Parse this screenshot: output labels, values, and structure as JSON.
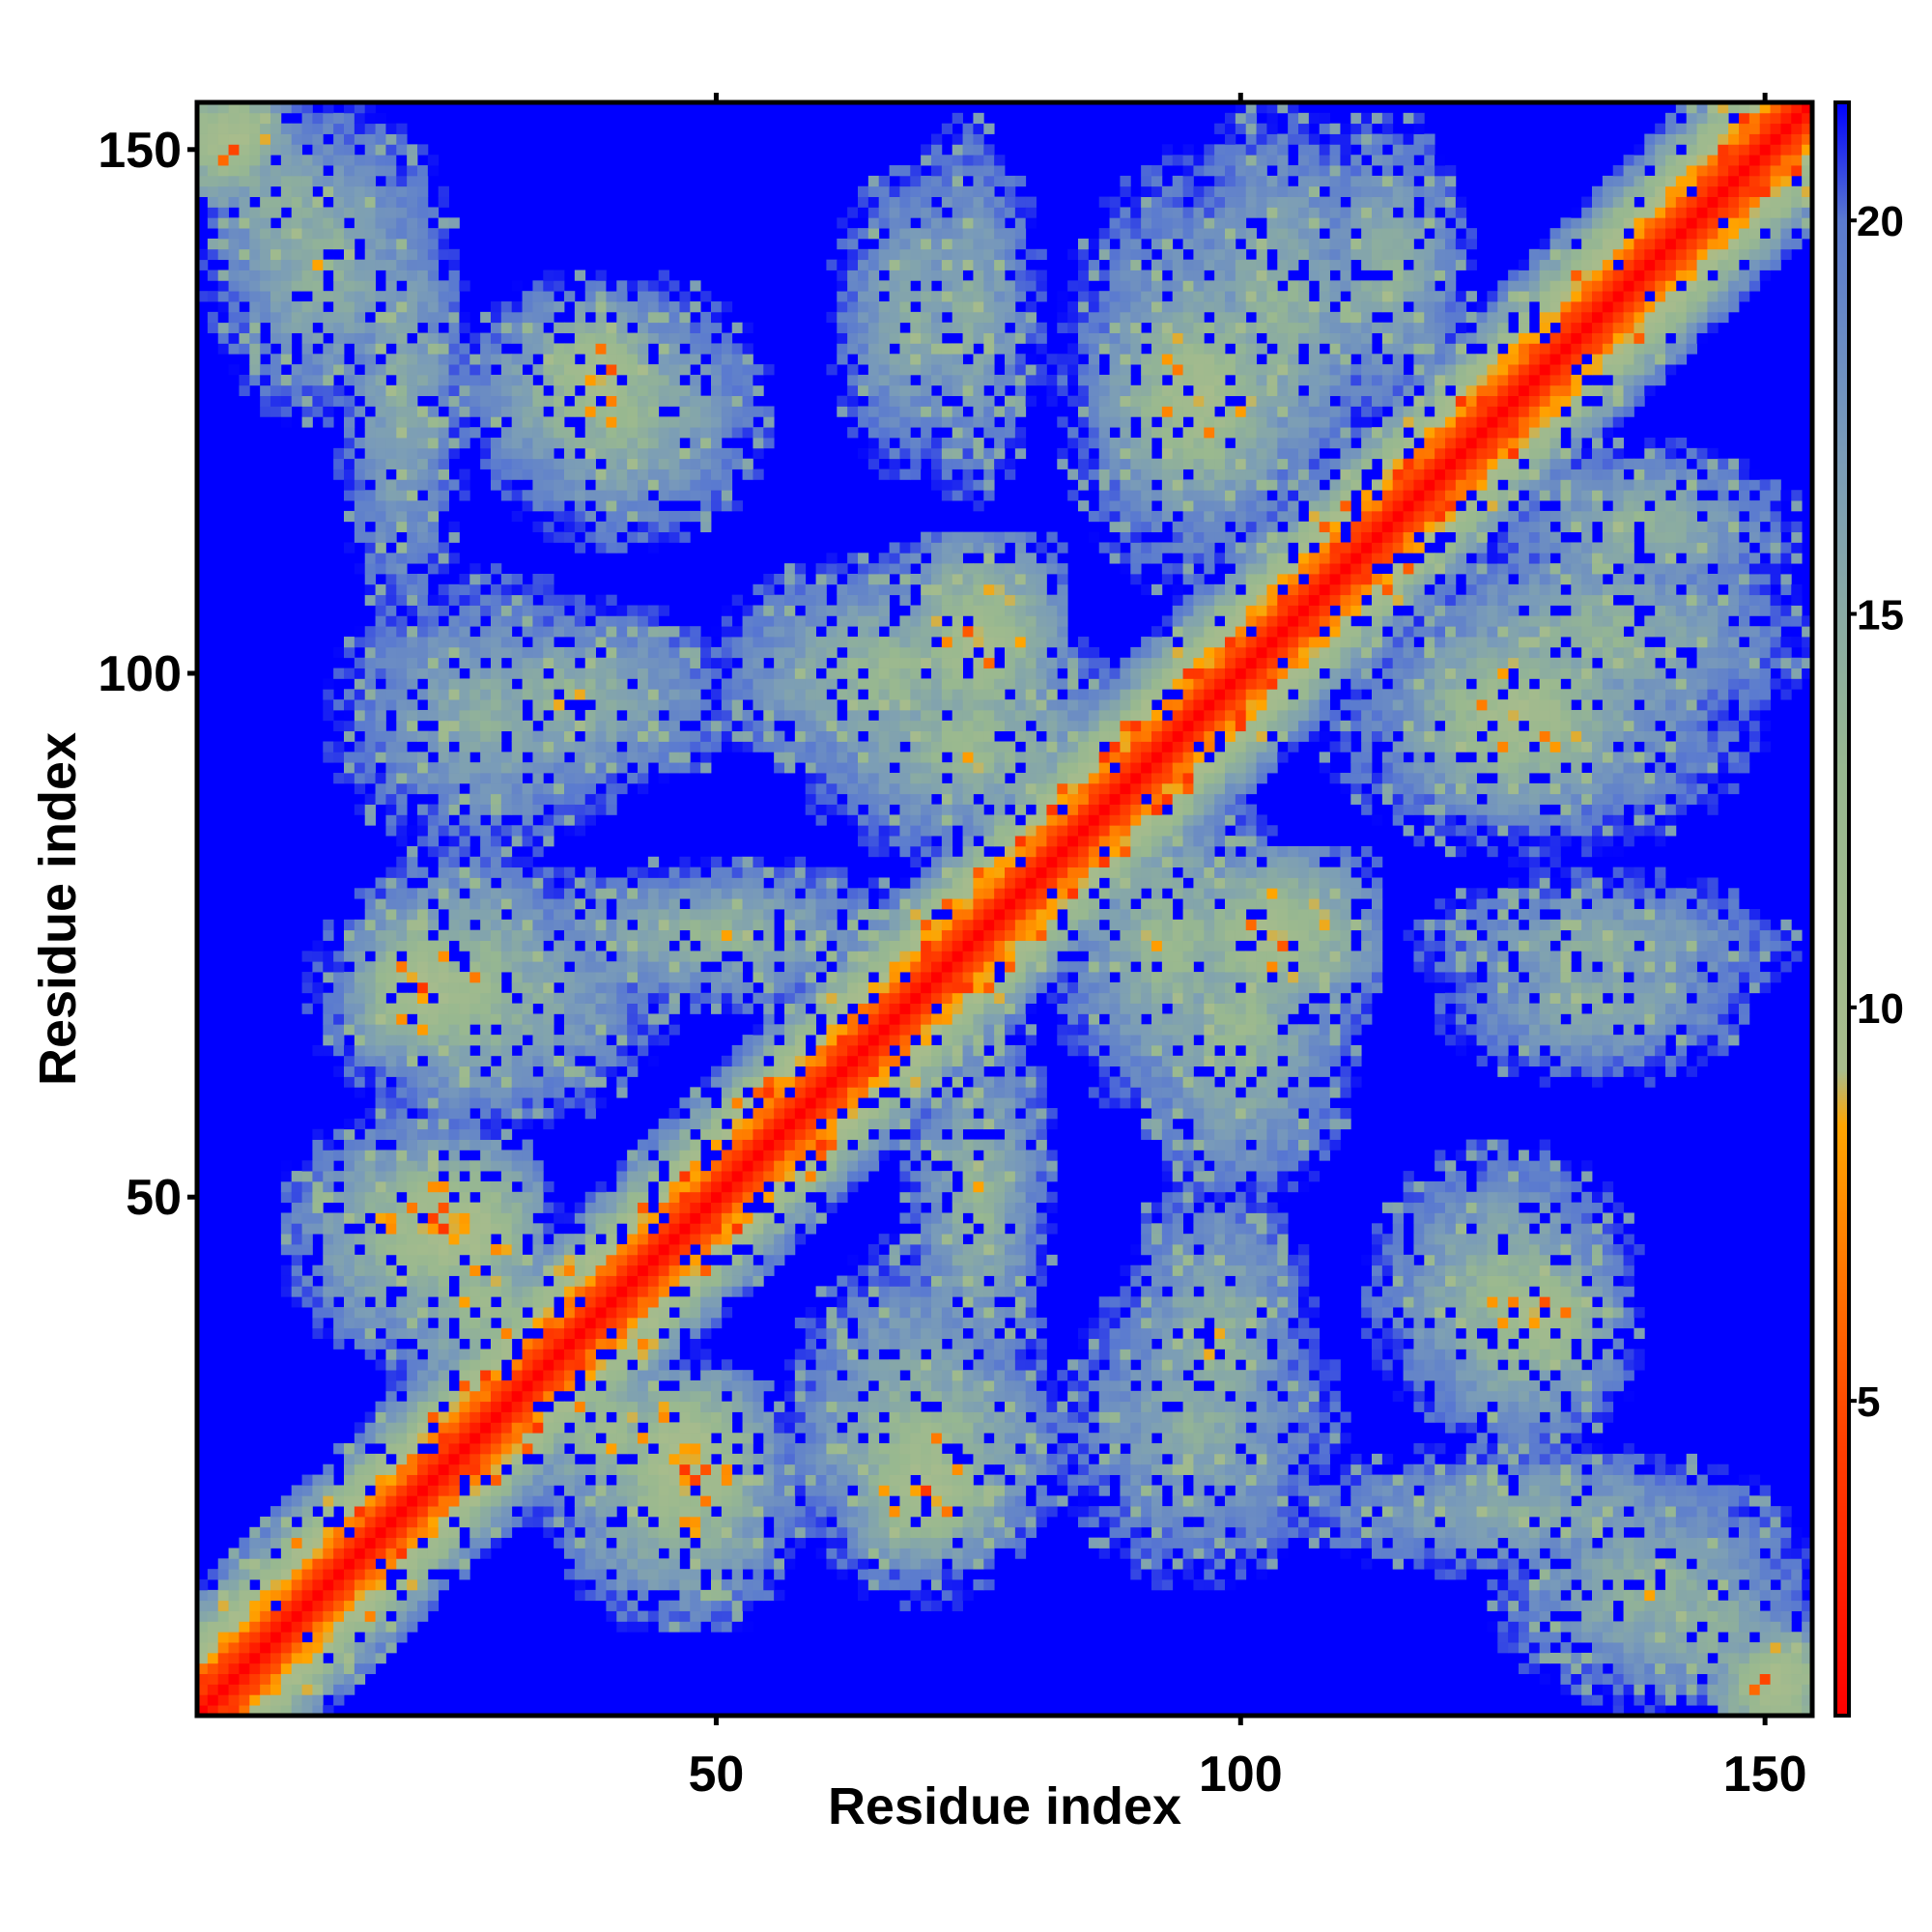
{
  "chart_data": {
    "type": "heatmap",
    "xlabel": "Residue index",
    "ylabel": "Residue index",
    "n_residues": 154,
    "xlim": [
      1,
      154
    ],
    "ylim": [
      1,
      154
    ],
    "x_ticks": [
      50,
      100,
      150
    ],
    "y_ticks": [
      50,
      100,
      150
    ],
    "x_tick_labels": [
      "50",
      "100",
      "150"
    ],
    "y_tick_labels": [
      "50",
      "100",
      "150"
    ],
    "colorbar": {
      "ticks": [
        5,
        10,
        15,
        20
      ],
      "tick_labels": [
        "5",
        "10",
        "15",
        "20"
      ],
      "range": [
        1,
        21.5
      ],
      "position": "right"
    },
    "value_cap": 21.5,
    "colors": {
      "background": "#0000ff",
      "stops": [
        {
          "value": 1,
          "color": "#ff0000"
        },
        {
          "value": 4.5,
          "color": "#ff4000"
        },
        {
          "value": 8.5,
          "color": "#ffa500"
        },
        {
          "value": 9.2,
          "color": "#a8bc8c"
        },
        {
          "value": 13,
          "color": "#98b890"
        },
        {
          "value": 17,
          "color": "#7a9cb8"
        },
        {
          "value": 20,
          "color": "#5a7ad0"
        },
        {
          "value": 21.5,
          "color": "#0000ff"
        }
      ]
    },
    "contact_regions": [
      {
        "x": [
          1,
          5
        ],
        "y": [
          148,
          154
        ],
        "value": 9
      },
      {
        "x": [
          3,
          22
        ],
        "y": [
          125,
          154
        ],
        "value": 13
      },
      {
        "x": [
          30,
          52
        ],
        "y": [
          115,
          135
        ],
        "value": 12
      },
      {
        "x": [
          62,
          75
        ],
        "y": [
          118,
          150
        ],
        "value": 14
      },
      {
        "x": [
          82,
          110
        ],
        "y": [
          105,
          152
        ],
        "value": 14
      },
      {
        "x": [
          108,
          120
        ],
        "y": [
          125,
          152
        ],
        "value": 13
      },
      {
        "x": [
          20,
          52
        ],
        "y": [
          90,
          105
        ],
        "value": 13
      },
      {
        "x": [
          52,
          80
        ],
        "y": [
          92,
          108
        ],
        "value": 12
      },
      {
        "x": [
          18,
          35
        ],
        "y": [
          60,
          80
        ],
        "value": 11
      },
      {
        "x": [
          30,
          70
        ],
        "y": [
          70,
          80
        ],
        "value": 13
      },
      {
        "x": [
          85,
          102
        ],
        "y": [
          60,
          88
        ],
        "value": 12
      },
      {
        "x": [
          96,
          110
        ],
        "y": [
          70,
          80
        ],
        "value": 9
      },
      {
        "x": [
          115,
          154
        ],
        "y": [
          95,
          112
        ],
        "value": 13
      },
      {
        "x": [
          115,
          154
        ],
        "y": [
          68,
          80
        ],
        "value": 14
      },
      {
        "x": [
          118,
          135
        ],
        "y": [
          90,
          102
        ],
        "value": 9
      },
      {
        "x": [
          12,
          30
        ],
        "y": [
          38,
          55
        ],
        "value": 11
      },
      {
        "x": [
          18,
          30
        ],
        "y": [
          42,
          52
        ],
        "value": 8
      },
      {
        "x": [
          30,
          50
        ],
        "y": [
          20,
          35
        ],
        "value": 12
      },
      {
        "x": [
          42,
          52
        ],
        "y": [
          22,
          30
        ],
        "value": 8
      },
      {
        "x": [
          58,
          80
        ],
        "y": [
          12,
          45
        ],
        "value": 13
      },
      {
        "x": [
          66,
          74
        ],
        "y": [
          18,
          26
        ],
        "value": 8
      },
      {
        "x": [
          82,
          110
        ],
        "y": [
          12,
          45
        ],
        "value": 14
      },
      {
        "x": [
          118,
          135
        ],
        "y": [
          28,
          45
        ],
        "value": 12
      },
      {
        "x": [
          125,
          132
        ],
        "y": [
          35,
          42
        ],
        "value": 8
      },
      {
        "x": [
          100,
          154
        ],
        "y": [
          15,
          25
        ],
        "value": 14
      },
      {
        "x": [
          135,
          154
        ],
        "y": [
          3,
          15
        ],
        "value": 13
      },
      {
        "x": [
          148,
          154
        ],
        "y": [
          1,
          6
        ],
        "value": 8
      }
    ]
  }
}
